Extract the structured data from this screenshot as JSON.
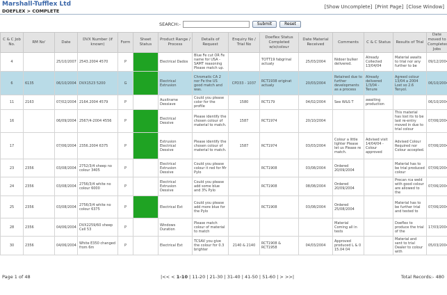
{
  "header": {
    "company": "Marshall-Tufflex Ltd",
    "breadcrumb": "DOEFLEX > COMPLETE",
    "links": [
      "[Show Uncomplete]",
      "[Print Page]",
      "[Close Window]"
    ]
  },
  "search": {
    "label": "SEARCH:-",
    "value": "",
    "placeholder": "",
    "submit_label": "Submit",
    "reset_label": "Reset"
  },
  "table": {
    "columns": [
      "C & C Job No.",
      "RM No'",
      "Date",
      "DVX Number (if known)",
      "Form",
      "Sheet Status",
      "Product Range / Process",
      "Details of Request",
      "Enquiry No / Trial No",
      "Doeflex Status Completed w/o/colour",
      "Date Material Received",
      "Comments",
      "C & C Status",
      "Results of Trial",
      "Date moved to Completed Jobs"
    ],
    "rows": [
      {
        "job": "4",
        "rm": "",
        "date": "25/10/2007",
        "dvx": "2543.2004 4570",
        "form": "P",
        "green": true,
        "product": "Electrical Dados",
        "details": "Blue Fe cut OR Fe name for USA - SAMT reasoning Please match up.",
        "enquiry": "",
        "status": "TOTT19 fabgrinal actualy",
        "received": "25/03/2004",
        "comments": "Nidoer bulker delivered.",
        "cc_status": "Already Collected 13/04/04",
        "results": "Material awaits to trial nor any further to be",
        "moved": "09/12/2004",
        "selected": false
      },
      {
        "job": "6",
        "rm": "6135",
        "date": "06/10/2004",
        "dvx": "DVX1523 5200",
        "form": "G",
        "green": true,
        "product": "Electrical Extrusion",
        "details": "Chromatic CA 2 nor Fe the US good match and was.",
        "enquiry": "CPD33 - 1037",
        "status": "RCT1938 originat actualy",
        "received": "20/03/2004",
        "comments": "Retained due to further developments as a process",
        "cc_status": "Already delivered 1/3/04 - Tenure",
        "results": "Agreed colour 13/04 a 2004 Lost so 2.6 Tenyol.",
        "moved": "06/10/2004",
        "selected": true
      },
      {
        "job": "11",
        "rm": "2163",
        "date": "07/02/2004",
        "dvx": "2164.2004 4579",
        "form": "P",
        "green": false,
        "product": "Auxitrame Dessiave",
        "details": "Could you please color for the profile",
        "enquiry": "1580",
        "status": "RCT179",
        "received": "04/02/2004",
        "comments": "See W&S T",
        "cc_status": "awaiting production",
        "results": "",
        "moved": "06/10/2004",
        "selected": false
      },
      {
        "job": "16",
        "rm": "",
        "date": "06/09/2004",
        "dvx": "2567/4-2004 4556",
        "form": "P",
        "green": true,
        "product": "Electrical Dessive",
        "details": "Please identify the chosen colour of material to match.",
        "enquiry": "1587",
        "status": "RCT1974",
        "received": "20/10/2004",
        "comments": "",
        "cc_status": "",
        "results": "This material has lost its to be last re-entry moved in due to trial colour",
        "moved": "07/06/2004",
        "selected": false
      },
      {
        "job": "17",
        "rm": "",
        "date": "07/06/2004",
        "dvx": "2356.2004 6375",
        "form": "P",
        "green": true,
        "product": "Extrusion Electrical Dessive",
        "details": "Please identify the chosen colour of material to match.",
        "enquiry": "1587",
        "status": "RCT1974",
        "received": "03/03/2004",
        "comments": "Colour a little lighter Please let us Please re match.",
        "cc_status": "Advised visit 14/04/04 - Colour approved",
        "results": "Advised Colour Required nor Colour accepted.",
        "moved": "07/06/2004",
        "selected": false
      },
      {
        "job": "23",
        "rm": "2356",
        "date": "03/08/2004",
        "dvx": "2752/3/4 sheep no colour 3405",
        "form": "P",
        "green": false,
        "product": "Electrical Extrusion Dessive",
        "details": "Could you please colour it red for Mr Pylo",
        "enquiry": "",
        "status": "RCT1908",
        "received": "03/08/2004",
        "comments": "Ordered 20/09/2004",
        "cc_status": "",
        "results": "Material has to be trial produced colour",
        "moved": "07/06/2004",
        "selected": false
      },
      {
        "job": "24",
        "rm": "2356",
        "date": "03/08/2004",
        "dvx": "2756/3/4 white no colour 6000",
        "form": "P",
        "green": false,
        "product": "Electrical Extrusion Dessive",
        "details": "Could you please add some blue and 3% Pylo",
        "enquiry": "",
        "status": "RCT1908",
        "received": "08/08/2004",
        "comments": "Ordered 20/09/2004",
        "cc_status": "",
        "results": "Precan rca weld with good colour are allowed to the",
        "moved": "07/06/2004",
        "selected": false
      },
      {
        "job": "25",
        "rm": "2356",
        "date": "03/08/2004",
        "dvx": "2756/3/4 white no colour 6375",
        "form": "P",
        "green": true,
        "product": "Electrical Ext",
        "details": "Could you please add more blue for the Pylo",
        "enquiry": "",
        "status": "RCT1908",
        "received": "03/08/2004",
        "comments": "Ordered 25/08/2004",
        "cc_status": "",
        "results": "Material has to be further trial and tested to",
        "moved": "07/06/2004",
        "selected": false
      },
      {
        "job": "28",
        "rm": "2356",
        "date": "04/06/2004",
        "dvx": "DVX2259/60 sheep Cell 53",
        "form": "P",
        "green": false,
        "product": "Windows Duration",
        "details": "Please match colour of material to match",
        "enquiry": "",
        "status": "",
        "received": "",
        "comments": "Material Coming all in tests",
        "cc_status": "",
        "results": "Doeflex to produce the trial of the",
        "moved": "17/03/2004",
        "selected": false
      },
      {
        "job": "30",
        "rm": "2356",
        "date": "04/06/2004",
        "dvx": "White E350 changed from 6m",
        "form": "P",
        "green": false,
        "product": "Electrical Ext",
        "details": "TCSAV you give the colour for 0.3 brighter",
        "enquiry": "2140 & 2140",
        "status": "RCT1908 & RCT1958",
        "received": "04/03/2004",
        "comments": "Approved produced L & 0 15.04 04",
        "cc_status": "",
        "results": "Material and sent to trial Dealer to colour with",
        "moved": "05/03/2004",
        "selected": false
      }
    ]
  },
  "footer": {
    "page_info": "Page 1 of 48",
    "pager": {
      "first": "|<<",
      "prev": "<",
      "current": "1-10",
      "pages": [
        "11-20",
        "21-30",
        "31-40",
        "41-50",
        "51-60"
      ],
      "next": ">",
      "last": ">>|"
    },
    "total_records": "Total Records:- 480"
  },
  "colors": {
    "brand": "#3a66a8",
    "header_bg": "#e3e3e3",
    "selected_row": "#b9dbe7",
    "sheet_status_green": "#1fa323"
  }
}
